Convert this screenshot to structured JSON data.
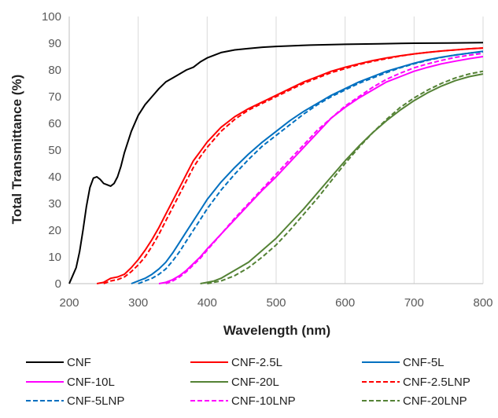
{
  "chart_data": {
    "type": "line",
    "xlabel": "Wavelength (nm)",
    "ylabel": "Total Transmittance (%)",
    "xlim": [
      200,
      800
    ],
    "ylim": [
      0,
      100
    ],
    "xticks": [
      200,
      300,
      400,
      500,
      600,
      700,
      800
    ],
    "yticks": [
      0,
      10,
      20,
      30,
      40,
      50,
      60,
      70,
      80,
      90,
      100
    ],
    "grid": "vertical",
    "legend": "bottom",
    "series": [
      {
        "name": "CNF",
        "color": "#000000",
        "dash": "solid",
        "x": [
          200,
          205,
          210,
          215,
          220,
          225,
          230,
          235,
          240,
          245,
          250,
          255,
          260,
          265,
          270,
          275,
          280,
          290,
          300,
          310,
          320,
          330,
          340,
          350,
          360,
          370,
          380,
          390,
          400,
          420,
          440,
          460,
          480,
          500,
          550,
          600,
          650,
          700,
          750,
          800
        ],
        "y": [
          0,
          3,
          6,
          12,
          20,
          29,
          36,
          39.5,
          40,
          39,
          37.5,
          37,
          36.5,
          37.5,
          40,
          44,
          49,
          57,
          63,
          67,
          70,
          73,
          75.5,
          77,
          78.5,
          80,
          81,
          83,
          84.5,
          86.5,
          87.5,
          88,
          88.5,
          88.8,
          89.3,
          89.6,
          89.8,
          90,
          90.1,
          90.2
        ]
      },
      {
        "name": "CNF-2.5L",
        "color": "#ff0000",
        "dash": "solid",
        "x": [
          240,
          250,
          260,
          270,
          280,
          290,
          300,
          310,
          320,
          330,
          340,
          350,
          360,
          370,
          380,
          390,
          400,
          420,
          440,
          460,
          480,
          500,
          520,
          540,
          560,
          580,
          600,
          620,
          640,
          660,
          680,
          700,
          720,
          740,
          760,
          780,
          800
        ],
        "y": [
          0,
          0.5,
          2,
          2.5,
          3.5,
          6,
          9,
          12.5,
          16.5,
          21,
          26,
          31,
          36,
          41,
          46,
          49.5,
          53,
          58.5,
          62.5,
          65.5,
          68,
          70.5,
          73,
          75.5,
          77.5,
          79.5,
          81,
          82.3,
          83.5,
          84.5,
          85.3,
          86,
          86.6,
          87.1,
          87.5,
          87.9,
          88.2
        ]
      },
      {
        "name": "CNF-5L",
        "color": "#0070c0",
        "dash": "solid",
        "x": [
          290,
          300,
          310,
          320,
          330,
          340,
          350,
          360,
          370,
          380,
          390,
          400,
          420,
          440,
          460,
          480,
          500,
          520,
          540,
          560,
          580,
          600,
          620,
          640,
          660,
          680,
          700,
          720,
          740,
          760,
          780,
          800
        ],
        "y": [
          0,
          1,
          2,
          3.5,
          5.5,
          8,
          11.5,
          15.5,
          19.5,
          23.5,
          27.5,
          31.5,
          38,
          43.5,
          48.5,
          53,
          57,
          61,
          64.5,
          67.5,
          70.5,
          73,
          75.5,
          77.5,
          79.5,
          81,
          82.5,
          83.8,
          84.8,
          85.6,
          86.3,
          87
        ]
      },
      {
        "name": "CNF-10L",
        "color": "#ff00ff",
        "dash": "solid",
        "x": [
          330,
          340,
          350,
          360,
          370,
          380,
          390,
          400,
          420,
          440,
          460,
          480,
          500,
          520,
          540,
          560,
          580,
          600,
          620,
          640,
          660,
          680,
          700,
          720,
          740,
          760,
          780,
          800
        ],
        "y": [
          0,
          0.5,
          1.5,
          3,
          5,
          7.5,
          10,
          13,
          18.5,
          24,
          29.5,
          35,
          40,
          45.5,
          51,
          56.5,
          62,
          66,
          69.5,
          72.5,
          75.5,
          77.5,
          79.5,
          81,
          82.3,
          83.3,
          84.2,
          85
        ]
      },
      {
        "name": "CNF-20L",
        "color": "#548235",
        "dash": "solid",
        "x": [
          390,
          400,
          410,
          420,
          430,
          440,
          450,
          460,
          480,
          500,
          520,
          540,
          560,
          580,
          600,
          620,
          640,
          660,
          680,
          700,
          720,
          740,
          760,
          780,
          800
        ],
        "y": [
          0,
          0.5,
          1,
          2,
          3.5,
          5,
          6.5,
          8,
          12.5,
          17,
          22.5,
          28,
          34,
          40,
          46,
          51.5,
          56.5,
          61,
          65,
          68.5,
          71.5,
          74,
          76,
          77.5,
          78.5
        ]
      },
      {
        "name": "CNF-2.5LNP",
        "color": "#ff0000",
        "dash": "dashed",
        "x": [
          250,
          260,
          270,
          280,
          290,
          300,
          310,
          320,
          330,
          340,
          350,
          360,
          370,
          380,
          390,
          400,
          420,
          440,
          460,
          480,
          500,
          520,
          540,
          560,
          580,
          600,
          620,
          640,
          660,
          680,
          700,
          720,
          740,
          760,
          780,
          800
        ],
        "y": [
          0,
          1,
          1.5,
          2.5,
          4.5,
          7,
          10,
          14,
          18.5,
          23.5,
          28.5,
          33.5,
          38.5,
          43.5,
          47.5,
          51,
          57,
          61.5,
          65,
          67.5,
          70,
          72.5,
          75,
          77,
          79,
          80.5,
          82,
          83.2,
          84.2,
          85.2,
          86,
          86.6,
          87.1,
          87.5,
          87.9,
          88.2
        ]
      },
      {
        "name": "CNF-5LNP",
        "color": "#0070c0",
        "dash": "dashed",
        "x": [
          300,
          310,
          320,
          330,
          340,
          350,
          360,
          370,
          380,
          390,
          400,
          420,
          440,
          460,
          480,
          500,
          520,
          540,
          560,
          580,
          600,
          620,
          640,
          660,
          680,
          700,
          720,
          740,
          760,
          780,
          800
        ],
        "y": [
          0,
          1,
          2,
          3.5,
          5.5,
          8.5,
          12,
          16,
          20,
          24,
          28,
          35,
          41,
          46.5,
          51.5,
          55.5,
          59.5,
          63.5,
          67,
          70,
          72.5,
          75,
          77,
          79,
          80.8,
          82.3,
          83.6,
          84.7,
          85.6,
          86.3,
          86.8
        ]
      },
      {
        "name": "CNF-10LNP",
        "color": "#ff00ff",
        "dash": "dashed",
        "x": [
          340,
          350,
          360,
          370,
          380,
          390,
          400,
          420,
          440,
          460,
          480,
          500,
          520,
          540,
          560,
          580,
          600,
          620,
          640,
          660,
          680,
          700,
          720,
          740,
          760,
          780,
          800
        ],
        "y": [
          0,
          1,
          2.5,
          4.5,
          7,
          9.5,
          12.5,
          18.5,
          24.5,
          30,
          35.5,
          41,
          46.5,
          52,
          57.5,
          62,
          66.5,
          70,
          73.5,
          76.5,
          78.8,
          80.8,
          82.3,
          83.6,
          84.7,
          85.5,
          86.2
        ]
      },
      {
        "name": "CNF-20LNP",
        "color": "#548235",
        "dash": "dashed",
        "x": [
          400,
          410,
          420,
          430,
          440,
          450,
          460,
          480,
          500,
          520,
          540,
          560,
          580,
          600,
          620,
          640,
          660,
          680,
          700,
          720,
          740,
          760,
          780,
          800
        ],
        "y": [
          0,
          0.5,
          1,
          2,
          3,
          4.5,
          6,
          10,
          14.5,
          20,
          26,
          32,
          38.5,
          45,
          51,
          56.5,
          61.5,
          66,
          69.5,
          72.5,
          75,
          77,
          78.5,
          79.5
        ]
      }
    ]
  }
}
